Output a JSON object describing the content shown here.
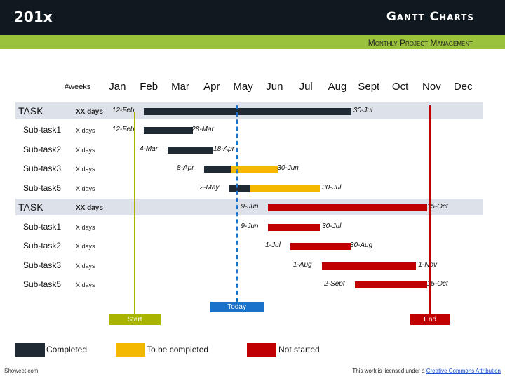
{
  "header": {
    "year": "201x",
    "title": "Gantt Charts",
    "subtitle": "Monthly Project Management"
  },
  "chart_data": {
    "type": "gantt",
    "weeks_label": "#weeks",
    "months": [
      "Jan",
      "Feb",
      "Mar",
      "Apr",
      "May",
      "Jun",
      "Jul",
      "Aug",
      "Sept",
      "Oct",
      "Nov",
      "Dec"
    ],
    "rows": [
      {
        "label": "TASK",
        "days": "XX days",
        "kind": "task",
        "start": "12-Feb",
        "end": "30-Jul",
        "segments": [
          {
            "from": 1.35,
            "to": 7.95,
            "status": "completed"
          }
        ]
      },
      {
        "label": "Sub-task1",
        "days": "X days",
        "kind": "sub",
        "start": "12-Feb",
        "end": "28-Mar",
        "segments": [
          {
            "from": 1.35,
            "to": 2.9,
            "status": "completed"
          }
        ]
      },
      {
        "label": "Sub-task2",
        "days": "X days",
        "kind": "sub",
        "start": "4-Mar",
        "end": "18-Apr",
        "segments": [
          {
            "from": 2.1,
            "to": 3.55,
            "status": "completed"
          }
        ]
      },
      {
        "label": "Sub-task3",
        "days": "X days",
        "kind": "sub",
        "start": "8-Apr",
        "end": "30-Jun",
        "segments": [
          {
            "from": 3.25,
            "to": 4.1,
            "status": "completed"
          },
          {
            "from": 4.1,
            "to": 5.6,
            "status": "to_be_completed"
          }
        ]
      },
      {
        "label": "Sub-task5",
        "days": "X days",
        "kind": "sub",
        "start": "2-May",
        "end": "30-Jul",
        "segments": [
          {
            "from": 4.05,
            "to": 4.7,
            "status": "completed"
          },
          {
            "from": 4.7,
            "to": 6.95,
            "status": "to_be_completed"
          }
        ]
      },
      {
        "label": "TASK",
        "days": "XX days",
        "kind": "task",
        "start": "9-Jun",
        "end": "15-Oct",
        "segments": [
          {
            "from": 5.3,
            "to": 10.35,
            "status": "not_started"
          }
        ]
      },
      {
        "label": "Sub-task1",
        "days": "X days",
        "kind": "sub",
        "start": "9-Jun",
        "end": "30-Jul",
        "segments": [
          {
            "from": 5.3,
            "to": 6.95,
            "status": "not_started"
          }
        ]
      },
      {
        "label": "Sub-task2",
        "days": "X days",
        "kind": "sub",
        "start": "1-Jul",
        "end": "30-Aug",
        "segments": [
          {
            "from": 6.0,
            "to": 7.95,
            "status": "not_started"
          }
        ]
      },
      {
        "label": "Sub-task3",
        "days": "X days",
        "kind": "sub",
        "start": "1-Aug",
        "end": "1-Nov",
        "segments": [
          {
            "from": 7.0,
            "to": 10.0,
            "status": "not_started"
          }
        ]
      },
      {
        "label": "Sub-task5",
        "days": "X days",
        "kind": "sub",
        "start": "2-Sept",
        "end": "15-Oct",
        "segments": [
          {
            "from": 8.05,
            "to": 10.35,
            "status": "not_started"
          }
        ]
      }
    ],
    "markers": [
      {
        "label": "Start",
        "month_pos": 1.05,
        "color": "#a8b400"
      },
      {
        "label": "Today",
        "month_pos": 4.3,
        "color": "#1a73c8"
      },
      {
        "label": "End",
        "month_pos": 10.45,
        "color": "#c00000"
      }
    ],
    "legend": [
      {
        "label": "Completed",
        "color": "#1f2a35"
      },
      {
        "label": "To be completed",
        "color": "#f5b800"
      },
      {
        "label": "Not started",
        "color": "#c00000"
      }
    ]
  },
  "footer": {
    "left": "Showeet.com",
    "right_prefix": "This work is licensed under a ",
    "right_link": "Creative Commons Attribution"
  }
}
